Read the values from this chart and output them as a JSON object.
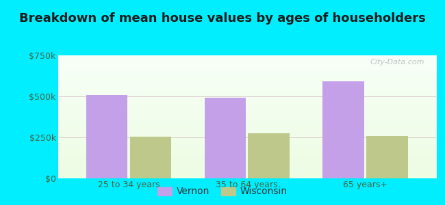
{
  "title": "Breakdown of mean house values by ages of householders",
  "categories": [
    "25 to 34 years",
    "35 to 64 years",
    "65 years+"
  ],
  "vernon_values": [
    510000,
    490000,
    590000
  ],
  "wisconsin_values": [
    255000,
    275000,
    260000
  ],
  "bar_color_vernon": "#c4a0e8",
  "bar_color_wisconsin": "#bec88a",
  "background_outer": "#00eeff",
  "ylim": [
    0,
    750000
  ],
  "yticks": [
    0,
    250000,
    500000,
    750000
  ],
  "ytick_labels": [
    "$0",
    "$250k",
    "$500k",
    "$750k"
  ],
  "legend_labels": [
    "Vernon",
    "Wisconsin"
  ],
  "title_fontsize": 13,
  "tick_fontsize": 9,
  "legend_fontsize": 10,
  "bar_width": 0.35,
  "bar_gap": 0.02
}
